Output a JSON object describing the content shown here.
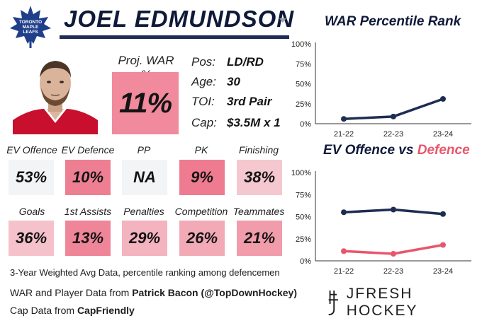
{
  "header": {
    "player_name": "JOEL EDMUNDSON",
    "logo_text": [
      "TORONTO",
      "MAPLE",
      "LEAFS"
    ]
  },
  "projection": {
    "label": "Proj. WAR %",
    "value": "11%",
    "color": "#f08a9c"
  },
  "player_info": [
    {
      "key": "Pos:",
      "value": "LD/RD"
    },
    {
      "key": "Age:",
      "value": "30"
    },
    {
      "key": "TOI:",
      "value": "3rd Pair"
    },
    {
      "key": "Cap:",
      "value": "$3.5M x 1"
    }
  ],
  "stats": [
    {
      "label": "EV Offence",
      "value": "53%",
      "color": "#f3f4f6"
    },
    {
      "label": "EV Defence",
      "value": "10%",
      "color": "#ee7f93"
    },
    {
      "label": "PP",
      "value": "NA",
      "color": "#f3f4f6"
    },
    {
      "label": "PK",
      "value": "9%",
      "color": "#ee7b90"
    },
    {
      "label": "Finishing",
      "value": "38%",
      "color": "#f5c8d0"
    },
    {
      "label": "Goals",
      "value": "36%",
      "color": "#f5c2cb"
    },
    {
      "label": "1st Assists",
      "value": "13%",
      "color": "#ef8598"
    },
    {
      "label": "Penalties",
      "value": "29%",
      "color": "#f3b3bf"
    },
    {
      "label": "Competition",
      "value": "26%",
      "color": "#f2aab7"
    },
    {
      "label": "Teammates",
      "value": "21%",
      "color": "#f19cab"
    }
  ],
  "footnote": "3-Year Weighted Avg Data, percentile ranking among defencemen",
  "sources": [
    {
      "prefix": "WAR and Player Data from ",
      "name": "Patrick Bacon (@TopDownHockey)"
    },
    {
      "prefix": "Cap Data from ",
      "name": "CapFriendly"
    }
  ],
  "brand": {
    "name": "JFRESH HOCKEY"
  },
  "colors": {
    "navy": "#1e2d52",
    "red": "#e8566c"
  },
  "chart_data": [
    {
      "type": "line",
      "title": "WAR Percentile Rank",
      "categories": [
        "21-22",
        "22-23",
        "23-24"
      ],
      "ylim": [
        0,
        100
      ],
      "yticks": [
        "0%",
        "25%",
        "50%",
        "75%",
        "100%"
      ],
      "grid": false,
      "series": [
        {
          "values": [
            6,
            9,
            31
          ],
          "color": "#1e2d52"
        }
      ]
    },
    {
      "type": "line",
      "title_parts": [
        "EV Offence",
        " vs ",
        "Defence"
      ],
      "categories": [
        "21-22",
        "22-23",
        "23-24"
      ],
      "ylim": [
        0,
        100
      ],
      "yticks": [
        "0%",
        "25%",
        "50%",
        "75%",
        "100%"
      ],
      "grid": false,
      "series": [
        {
          "name": "EV Offence",
          "values": [
            55,
            58,
            53
          ],
          "color": "#1e2d52"
        },
        {
          "name": "Defence",
          "values": [
            11,
            8,
            18
          ],
          "color": "#e8566c"
        }
      ]
    }
  ]
}
